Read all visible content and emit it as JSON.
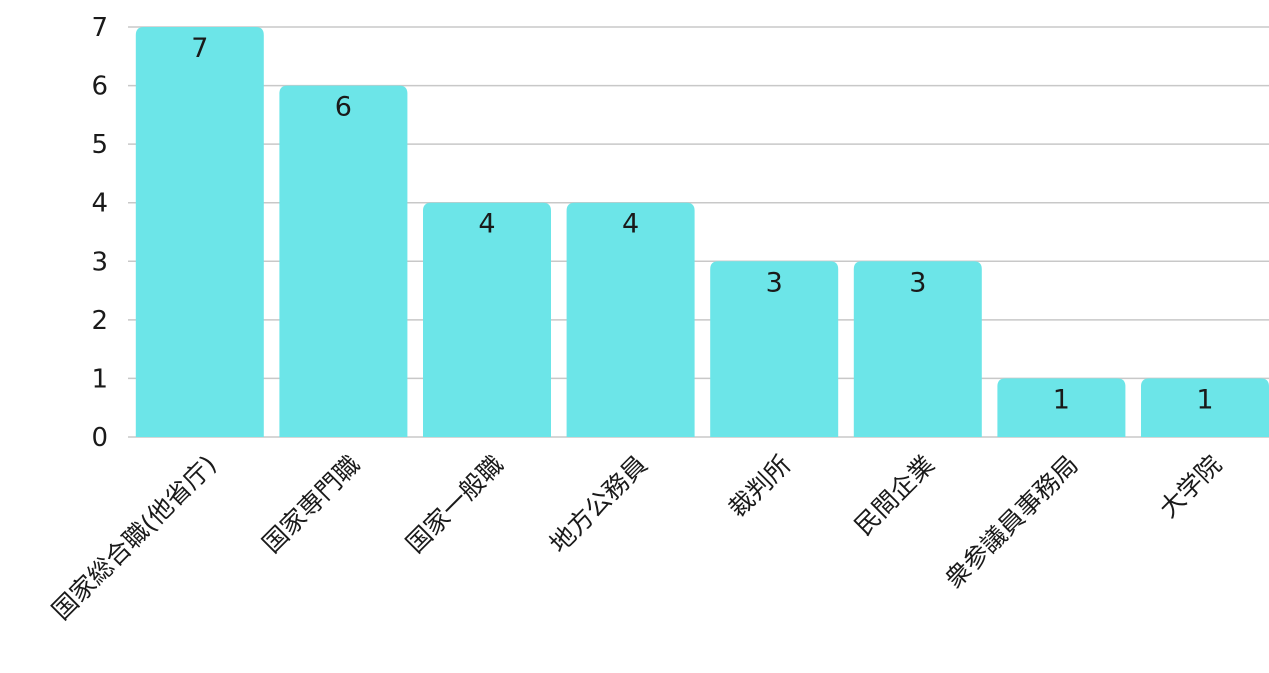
{
  "chart_data": {
    "type": "bar",
    "categories": [
      "国家総合職(他省庁)",
      "国家専門職",
      "国家一般職",
      "地方公務員",
      "裁判所",
      "民間企業",
      "衆参議員事務局",
      "大学院"
    ],
    "values": [
      7,
      6,
      4,
      4,
      3,
      3,
      1,
      1
    ],
    "title": "",
    "xlabel": "",
    "ylabel": "",
    "ylim": [
      0,
      7
    ],
    "yticks": [
      "0",
      "1",
      "2",
      "3",
      "4",
      "5",
      "6",
      "7"
    ],
    "data_labels": [
      "7",
      "6",
      "4",
      "4",
      "3",
      "3",
      "1",
      "1"
    ],
    "grid": true,
    "legend": "none",
    "bar_color": "#6ce5e8"
  }
}
